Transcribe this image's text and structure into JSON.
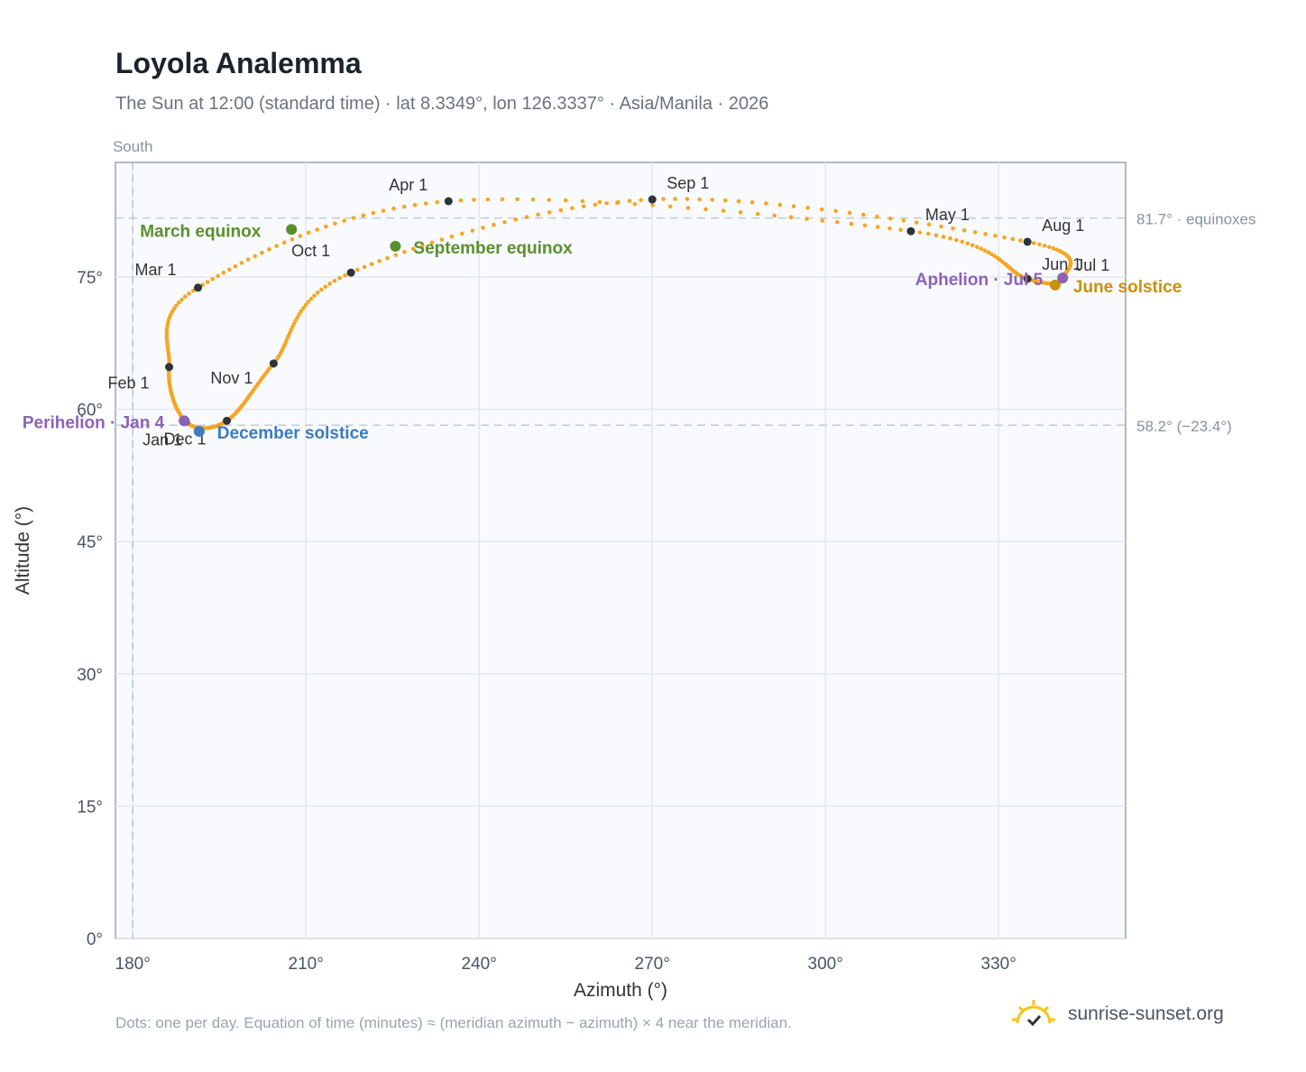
{
  "title": "Loyola Analemma",
  "subtitle": "The Sun at 12:00 (standard time) · lat 8.3349°, lon 126.3337° · Asia/Manila · 2026",
  "footnote": "Dots: one per day. Equation of time (minutes) ≈ (meridian azimuth − azimuth) × 4 near the meridian.",
  "brand": {
    "name": "sunrise-sunset.org",
    "icon": "sun-logo-icon"
  },
  "chart_data": {
    "type": "scatter",
    "title": "Loyola Analemma",
    "xlabel": "Azimuth (°)",
    "ylabel": "Altitude (°)",
    "xlim": [
      177,
      352
    ],
    "ylim": [
      0,
      88
    ],
    "xticks": [
      180,
      210,
      240,
      270,
      300,
      330
    ],
    "xtick_labels": [
      "180°",
      "210°",
      "240°",
      "270°",
      "300°",
      "330°"
    ],
    "yticks": [
      0,
      15,
      30,
      45,
      60,
      75
    ],
    "ytick_labels": [
      "0°",
      "15°",
      "30°",
      "45°",
      "60°",
      "75°"
    ],
    "grid": true,
    "direction_label": "South",
    "reference_lines": [
      {
        "y": 81.7,
        "label": "81.7° · equinoxes"
      },
      {
        "y": 58.2,
        "label": "58.2° (−23.4°)"
      }
    ],
    "meridian_x": 180,
    "month_markers": [
      {
        "label": "Jan 1",
        "az": 189.2,
        "alt": 58.6
      },
      {
        "label": "Feb 1",
        "az": 186.3,
        "alt": 64.8
      },
      {
        "label": "Mar 1",
        "az": 191.3,
        "alt": 73.8
      },
      {
        "label": "Apr 1",
        "az": 234.7,
        "alt": 83.6
      },
      {
        "label": "May 1",
        "az": 314.8,
        "alt": 80.2
      },
      {
        "label": "Jun 1",
        "az": 335.0,
        "alt": 74.8
      },
      {
        "label": "Jul 1",
        "az": 341.1,
        "alt": 74.9
      },
      {
        "label": "Aug 1",
        "az": 335.0,
        "alt": 79.0
      },
      {
        "label": "Sep 1",
        "az": 270.0,
        "alt": 83.8
      },
      {
        "label": "Oct 1",
        "az": 217.8,
        "alt": 75.5
      },
      {
        "label": "Nov 1",
        "az": 204.4,
        "alt": 65.2
      },
      {
        "label": "Dec 1",
        "az": 196.3,
        "alt": 58.7
      }
    ],
    "events": [
      {
        "label": "March equinox",
        "az": 207.5,
        "alt": 80.4,
        "color": "#5a8f2e"
      },
      {
        "label": "September equinox",
        "az": 225.5,
        "alt": 78.5,
        "color": "#5a8f2e"
      },
      {
        "label": "June solstice",
        "az": 339.8,
        "alt": 74.1,
        "color": "#c9900f"
      },
      {
        "label": "December solstice",
        "az": 191.5,
        "alt": 57.5,
        "color": "#3b7bbf"
      },
      {
        "label": "Perihelion · Jan 4",
        "az": 188.9,
        "alt": 58.7,
        "color": "#8c62b5"
      },
      {
        "label": "Aphelion · Jul 5",
        "az": 341.1,
        "alt": 74.9,
        "color": "#8c62b5"
      }
    ],
    "curve_color": "#f5a623",
    "marker_color": "#2d3339"
  }
}
